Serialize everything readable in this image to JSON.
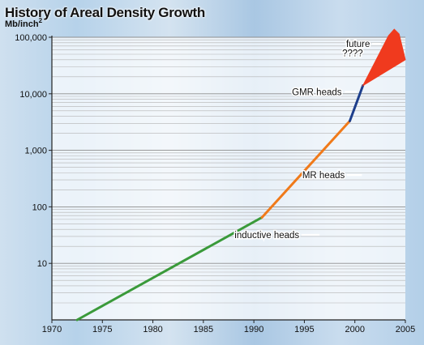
{
  "chart_data": {
    "type": "line",
    "title": "History of Areal Density Growth",
    "ylabel": "Mb/inch",
    "ylabel_superscript": "2",
    "y_scale": "log",
    "xlim": [
      1970,
      2005
    ],
    "ylim": [
      1,
      100000
    ],
    "x_ticks": [
      1970,
      1975,
      1980,
      1985,
      1990,
      1995,
      2000,
      2005
    ],
    "x_tick_labels": [
      "1970",
      "1975",
      "1980",
      "1985",
      "1990",
      "1995",
      "2000",
      "2005"
    ],
    "y_ticks": [
      10,
      100,
      1000,
      10000,
      100000
    ],
    "y_tick_labels": [
      "10",
      "100",
      "1,000",
      "10,000",
      "100,000"
    ],
    "grid": true,
    "series": [
      {
        "name": "inductive heads",
        "color": "#3a9a3a",
        "x": [
          1972.5,
          1990.8
        ],
        "y": [
          1,
          65
        ]
      },
      {
        "name": "MR heads",
        "color": "#f07a1a",
        "x": [
          1990.8,
          1999.5
        ],
        "y": [
          65,
          3300
        ]
      },
      {
        "name": "GMR heads",
        "color": "#1e3f8c",
        "x": [
          1999.5,
          2000.8
        ],
        "y": [
          3300,
          14000
        ]
      },
      {
        "name": "future\n????",
        "color": "#f03a1e",
        "type": "fan",
        "x": [
          2000.8,
          2005
        ],
        "y": [
          14000,
          40000
        ],
        "y_upper": 130000,
        "y_lower": 40000
      }
    ],
    "annotations": [
      {
        "text": "inductive heads",
        "x": 1994.5,
        "y": 28,
        "anchor": "end",
        "leader_from_x": 1994.7,
        "leader_to_x": 1996.5
      },
      {
        "text": "MR heads",
        "x": 1999,
        "y": 320,
        "anchor": "end",
        "leader_from_x": 1999.2,
        "leader_to_x": 2000.7
      },
      {
        "text": "GMR heads",
        "x": 1998.7,
        "y": 9500,
        "anchor": "end",
        "leader_from_x": 1999,
        "leader_to_x": 2000.2
      },
      {
        "text": "future",
        "x": 2001.5,
        "y": 67000,
        "anchor": "end",
        "leader_from_x": 2001.7,
        "leader_to_x": 2002.6
      },
      {
        "text": "????",
        "x": 2000.8,
        "y": 46000,
        "anchor": "end"
      }
    ]
  }
}
